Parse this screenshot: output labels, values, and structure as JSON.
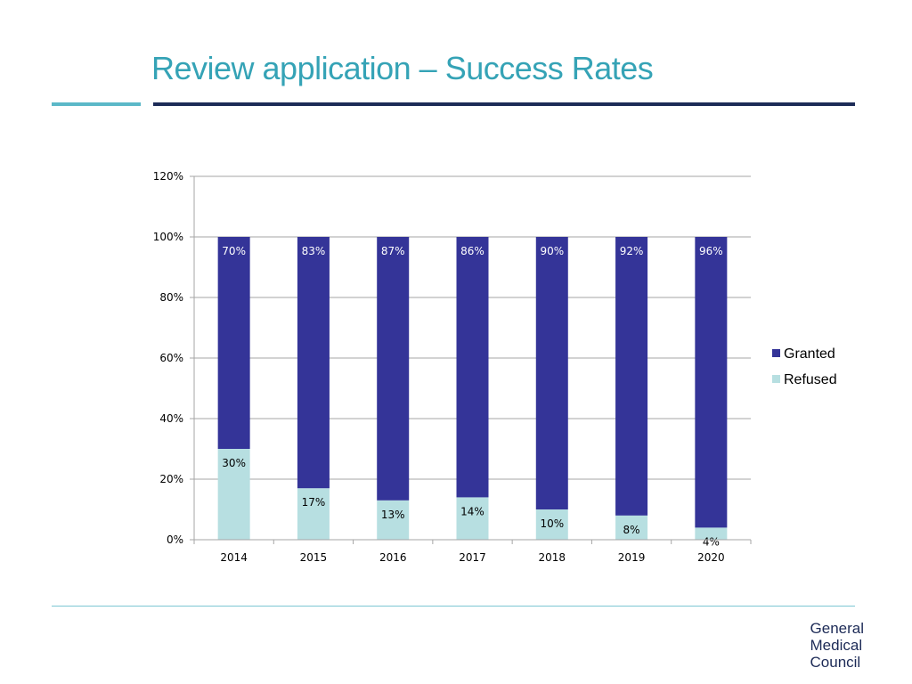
{
  "header": {
    "title": "Review application – Success Rates"
  },
  "logo": {
    "line1": "General",
    "line2": "Medical",
    "line3": "Council"
  },
  "colors": {
    "granted": "#343498",
    "refused": "#b7dfe1",
    "title": "#35a3b6",
    "navy": "#1d2b57"
  },
  "chart_data": {
    "type": "bar",
    "stacked": true,
    "title": "",
    "xlabel": "",
    "ylabel": "",
    "ylim": [
      0,
      120
    ],
    "yticks": [
      "0%",
      "20%",
      "40%",
      "60%",
      "80%",
      "100%",
      "120%"
    ],
    "ytick_values": [
      0,
      20,
      40,
      60,
      80,
      100,
      120
    ],
    "categories": [
      "2014",
      "2015",
      "2016",
      "2017",
      "2018",
      "2019",
      "2020"
    ],
    "series": [
      {
        "name": "Refused",
        "values": [
          30,
          17,
          13,
          14,
          10,
          8,
          4
        ],
        "labels": [
          "30%",
          "17%",
          "13%",
          "14%",
          "10%",
          "8%",
          "4%"
        ]
      },
      {
        "name": "Granted",
        "values": [
          70,
          83,
          87,
          86,
          90,
          92,
          96
        ],
        "labels": [
          "70%",
          "83%",
          "87%",
          "86%",
          "90%",
          "92%",
          "96%"
        ]
      }
    ],
    "legend": {
      "position": "right",
      "entries": [
        "Granted",
        "Refused"
      ]
    },
    "grid": true
  }
}
